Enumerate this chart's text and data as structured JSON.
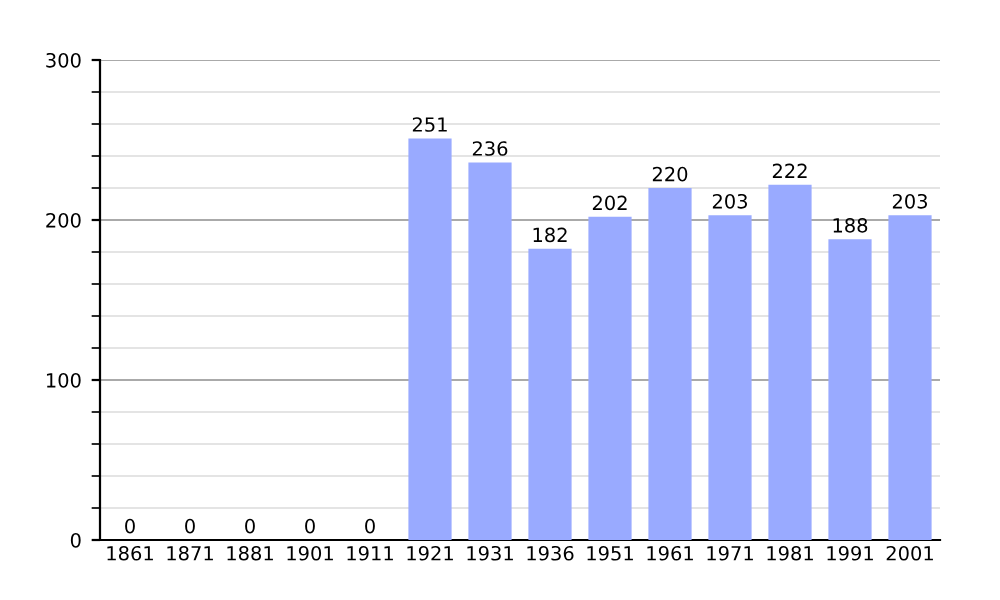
{
  "chart_data": {
    "type": "bar",
    "categories": [
      "1861",
      "1871",
      "1881",
      "1901",
      "1911",
      "1921",
      "1931",
      "1936",
      "1951",
      "1961",
      "1971",
      "1981",
      "1991",
      "2001"
    ],
    "values": [
      0,
      0,
      0,
      0,
      0,
      251,
      236,
      182,
      202,
      220,
      203,
      222,
      188,
      203
    ],
    "color": "#99aaff",
    "ylim": [
      0,
      300
    ],
    "yticks": [
      0,
      100,
      200,
      300
    ],
    "grid": "y",
    "data_labels": true
  }
}
